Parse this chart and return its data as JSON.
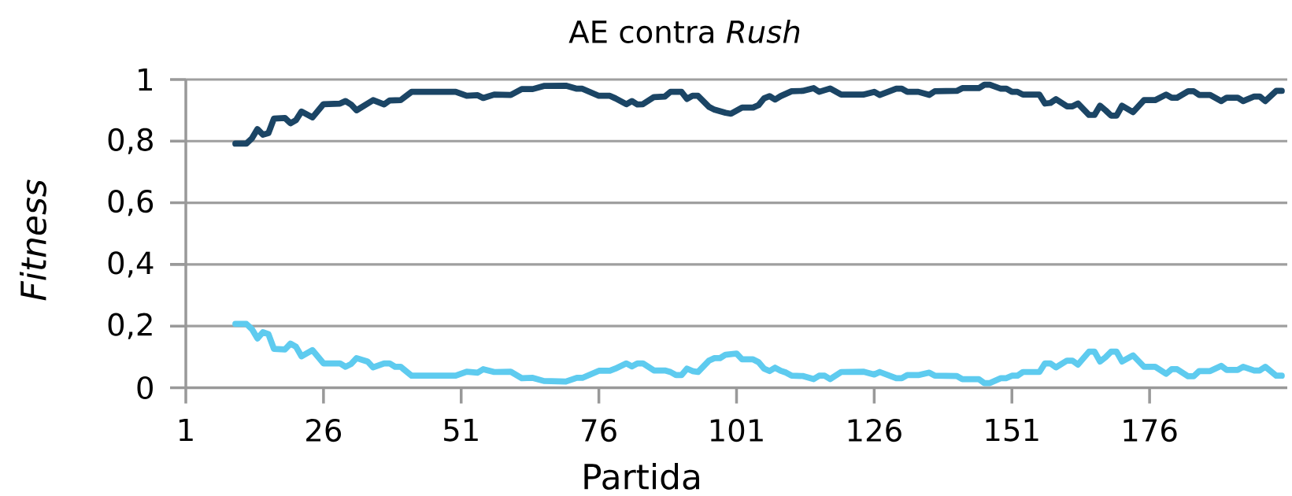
{
  "chart_data": {
    "type": "line",
    "title": "AE contra *Rush*",
    "xlabel": "Partida",
    "ylabel": "Fitness",
    "xlim": [
      1,
      201
    ],
    "xticks": [
      1,
      26,
      51,
      76,
      101,
      126,
      151,
      176
    ],
    "ylim": [
      0,
      1
    ],
    "yticks": [
      {
        "value": 0,
        "label": "0"
      },
      {
        "value": 0.2,
        "label": "0,2"
      },
      {
        "value": 0.4,
        "label": "0,4"
      },
      {
        "value": 0.6,
        "label": "0,6"
      },
      {
        "value": 0.8,
        "label": "0,8"
      },
      {
        "value": 1,
        "label": "1"
      }
    ],
    "grid": "y",
    "marker": "none",
    "line_style": "solid",
    "series": [
      {
        "color": "#1b4565",
        "x": [
          10,
          12,
          13,
          14,
          15,
          16,
          17,
          19,
          20,
          21,
          22,
          24,
          26,
          29,
          30,
          31,
          32,
          35,
          37,
          38,
          40,
          42,
          50,
          52,
          54,
          55,
          57,
          60,
          62,
          64,
          66,
          70,
          72,
          73,
          76,
          78,
          79,
          81,
          82,
          83,
          84,
          86,
          88,
          89,
          91,
          92,
          93,
          94,
          96,
          97,
          99,
          100,
          102,
          104,
          105,
          106,
          107,
          108,
          109,
          111,
          113,
          115,
          116,
          118,
          120,
          124,
          126,
          127,
          130,
          131,
          132,
          134,
          136,
          137,
          141,
          142,
          145,
          146,
          147,
          149,
          150,
          151,
          152,
          153,
          156,
          157,
          158,
          159,
          161,
          162,
          163,
          165,
          166,
          167,
          168,
          169,
          170,
          171,
          173,
          175,
          177,
          179,
          180,
          181,
          183,
          184,
          185,
          187,
          189,
          190,
          192,
          193,
          195,
          196,
          197,
          199,
          200
        ],
        "values": [
          0.792,
          0.792,
          0.809,
          0.839,
          0.821,
          0.826,
          0.873,
          0.875,
          0.858,
          0.868,
          0.896,
          0.877,
          0.92,
          0.922,
          0.93,
          0.919,
          0.9,
          0.933,
          0.919,
          0.932,
          0.933,
          0.96,
          0.96,
          0.947,
          0.949,
          0.94,
          0.951,
          0.95,
          0.969,
          0.969,
          0.979,
          0.98,
          0.97,
          0.97,
          0.947,
          0.947,
          0.939,
          0.92,
          0.93,
          0.919,
          0.92,
          0.943,
          0.945,
          0.96,
          0.96,
          0.937,
          0.947,
          0.947,
          0.911,
          0.902,
          0.892,
          0.889,
          0.909,
          0.909,
          0.917,
          0.939,
          0.946,
          0.935,
          0.946,
          0.962,
          0.963,
          0.972,
          0.96,
          0.971,
          0.951,
          0.951,
          0.96,
          0.95,
          0.97,
          0.97,
          0.96,
          0.96,
          0.95,
          0.962,
          0.963,
          0.972,
          0.972,
          0.983,
          0.983,
          0.97,
          0.97,
          0.96,
          0.96,
          0.951,
          0.951,
          0.922,
          0.924,
          0.936,
          0.913,
          0.913,
          0.922,
          0.885,
          0.885,
          0.915,
          0.9,
          0.883,
          0.883,
          0.915,
          0.894,
          0.933,
          0.933,
          0.951,
          0.941,
          0.941,
          0.962,
          0.962,
          0.95,
          0.95,
          0.93,
          0.941,
          0.941,
          0.93,
          0.945,
          0.945,
          0.93,
          0.963,
          0.963
        ]
      },
      {
        "color": "#5ecbef",
        "x": [
          10,
          12,
          13,
          14,
          15,
          16,
          17,
          19,
          20,
          21,
          22,
          24,
          26,
          29,
          30,
          31,
          32,
          34,
          35,
          37,
          38,
          39,
          40,
          42,
          50,
          52,
          54,
          55,
          57,
          60,
          62,
          64,
          66,
          70,
          72,
          73,
          76,
          78,
          79,
          81,
          82,
          83,
          84,
          86,
          88,
          89,
          90,
          91,
          92,
          93,
          94,
          96,
          97,
          98,
          99,
          101,
          102,
          104,
          105,
          106,
          107,
          108,
          109,
          110,
          111,
          113,
          115,
          116,
          117,
          118,
          120,
          124,
          126,
          127,
          130,
          131,
          132,
          134,
          136,
          137,
          141,
          142,
          145,
          146,
          147,
          149,
          150,
          151,
          152,
          153,
          156,
          157,
          158,
          159,
          161,
          162,
          163,
          165,
          166,
          167,
          168,
          169,
          170,
          171,
          173,
          175,
          177,
          179,
          180,
          181,
          183,
          184,
          185,
          187,
          189,
          190,
          192,
          193,
          195,
          196,
          197,
          199,
          200
        ],
        "values": [
          0.207,
          0.207,
          0.19,
          0.16,
          0.18,
          0.174,
          0.126,
          0.124,
          0.143,
          0.133,
          0.102,
          0.122,
          0.079,
          0.079,
          0.068,
          0.077,
          0.096,
          0.085,
          0.066,
          0.079,
          0.079,
          0.068,
          0.068,
          0.039,
          0.039,
          0.052,
          0.049,
          0.06,
          0.051,
          0.052,
          0.031,
          0.032,
          0.022,
          0.02,
          0.032,
          0.032,
          0.055,
          0.055,
          0.062,
          0.079,
          0.069,
          0.079,
          0.079,
          0.056,
          0.056,
          0.051,
          0.041,
          0.041,
          0.062,
          0.054,
          0.051,
          0.088,
          0.096,
          0.096,
          0.107,
          0.111,
          0.092,
          0.092,
          0.083,
          0.062,
          0.054,
          0.065,
          0.055,
          0.049,
          0.039,
          0.038,
          0.028,
          0.039,
          0.039,
          0.028,
          0.051,
          0.052,
          0.043,
          0.051,
          0.031,
          0.031,
          0.041,
          0.041,
          0.049,
          0.039,
          0.038,
          0.028,
          0.028,
          0.015,
          0.015,
          0.031,
          0.031,
          0.039,
          0.039,
          0.051,
          0.051,
          0.079,
          0.079,
          0.066,
          0.088,
          0.088,
          0.075,
          0.117,
          0.117,
          0.085,
          0.099,
          0.117,
          0.117,
          0.085,
          0.105,
          0.068,
          0.068,
          0.045,
          0.06,
          0.06,
          0.037,
          0.037,
          0.054,
          0.054,
          0.071,
          0.058,
          0.058,
          0.068,
          0.056,
          0.056,
          0.068,
          0.039,
          0.039
        ]
      }
    ]
  }
}
